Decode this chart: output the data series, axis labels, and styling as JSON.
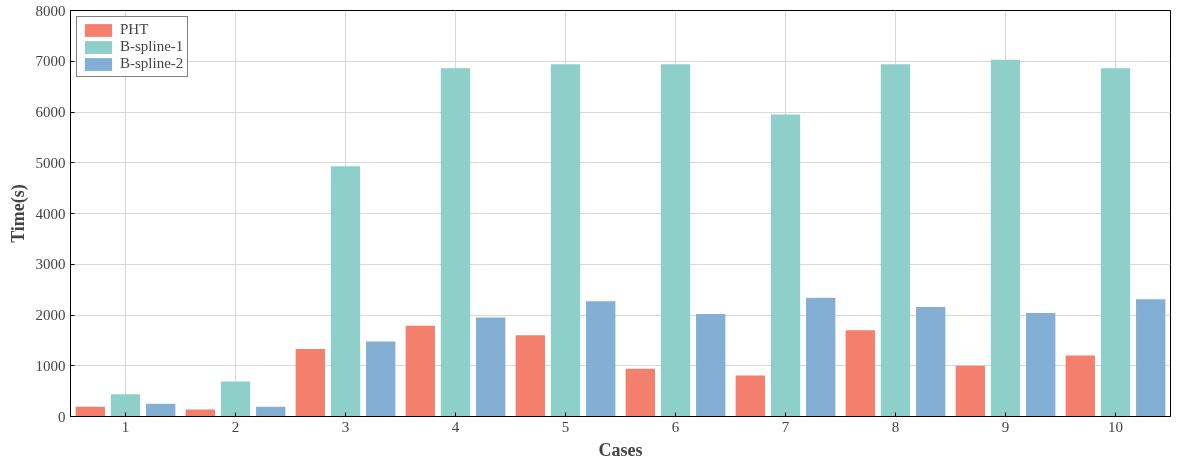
{
  "chart_data": {
    "type": "bar",
    "xlabel": "Cases",
    "ylabel": "Time(s)",
    "categories": [
      "1",
      "2",
      "3",
      "4",
      "5",
      "6",
      "7",
      "8",
      "9",
      "10"
    ],
    "series": [
      {
        "name": "PHT",
        "color": "#f47f6d",
        "values": [
          190,
          140,
          1330,
          1790,
          1600,
          940,
          810,
          1700,
          1000,
          1200
        ]
      },
      {
        "name": "B-spline-1",
        "color": "#8ecfc9",
        "values": [
          440,
          690,
          4930,
          6860,
          6940,
          6940,
          5950,
          6940,
          7030,
          6860
        ]
      },
      {
        "name": "B-spline-2",
        "color": "#82afd3",
        "values": [
          250,
          190,
          1480,
          1950,
          2270,
          2020,
          2340,
          2160,
          2040,
          2310
        ]
      }
    ],
    "ylim": [
      0,
      8000
    ],
    "yticks": [
      0,
      1000,
      2000,
      3000,
      4000,
      5000,
      6000,
      7000,
      8000
    ],
    "grid": true,
    "legend": "top left"
  }
}
